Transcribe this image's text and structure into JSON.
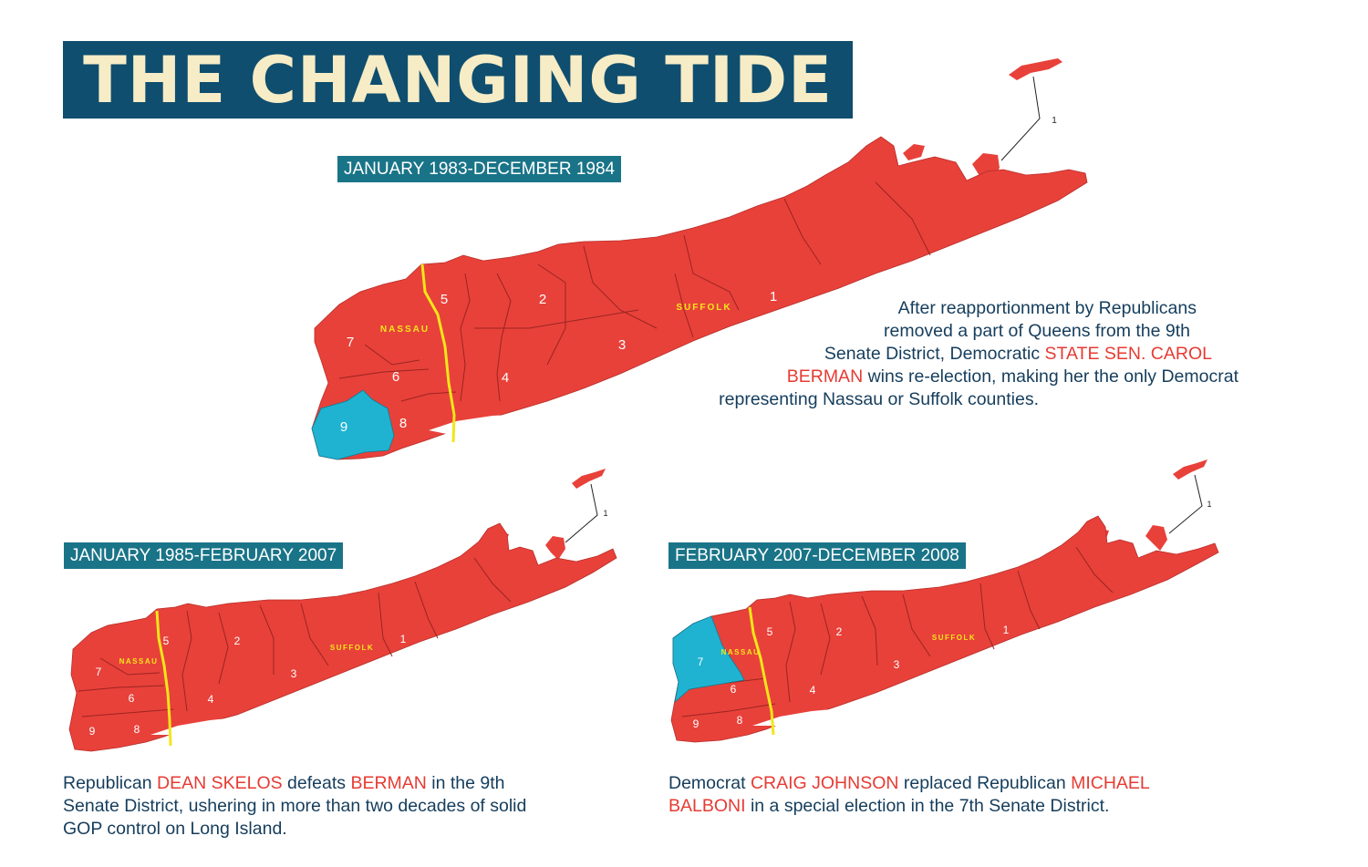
{
  "title": "THE CHANGING TIDE",
  "colors": {
    "title_bg": "#0f4e6e",
    "title_text": "#f6ecc6",
    "period_bg": "#1a7488",
    "republican": "#e8413a",
    "democrat": "#1fb3d1",
    "county_line": "#f2e61a",
    "caption_text": "#153d5c",
    "name_highlight": "#e63b33"
  },
  "maps": [
    {
      "period": "JANUARY 1983-DECEMBER 1984",
      "county_labels": [
        "NASSAU",
        "SUFFOLK"
      ],
      "districts": [
        {
          "id": "1",
          "party": "Republican"
        },
        {
          "id": "2",
          "party": "Republican"
        },
        {
          "id": "3",
          "party": "Republican"
        },
        {
          "id": "4",
          "party": "Republican"
        },
        {
          "id": "5",
          "party": "Republican"
        },
        {
          "id": "6",
          "party": "Republican"
        },
        {
          "id": "7",
          "party": "Republican"
        },
        {
          "id": "8",
          "party": "Republican"
        },
        {
          "id": "9",
          "party": "Democrat"
        }
      ],
      "caption": [
        [
          {
            "t": "After reapportionment by Republicans"
          }
        ],
        [
          {
            "t": "removed a part of Queens from the 9th"
          }
        ],
        [
          {
            "t": "Senate District, Democratic "
          },
          {
            "t": "STATE SEN. CAROL",
            "h": true
          }
        ],
        [
          {
            "t": "BERMAN",
            "h": true
          },
          {
            "t": " wins re-election, making her the only Democrat"
          }
        ],
        [
          {
            "t": "representing Nassau or Suffolk counties."
          }
        ]
      ]
    },
    {
      "period": "JANUARY 1985-FEBRUARY 2007",
      "county_labels": [
        "NASSAU",
        "SUFFOLK"
      ],
      "districts": [
        {
          "id": "1",
          "party": "Republican"
        },
        {
          "id": "2",
          "party": "Republican"
        },
        {
          "id": "3",
          "party": "Republican"
        },
        {
          "id": "4",
          "party": "Republican"
        },
        {
          "id": "5",
          "party": "Republican"
        },
        {
          "id": "6",
          "party": "Republican"
        },
        {
          "id": "7",
          "party": "Republican"
        },
        {
          "id": "8",
          "party": "Republican"
        },
        {
          "id": "9",
          "party": "Republican"
        }
      ],
      "caption": [
        [
          {
            "t": "Republican "
          },
          {
            "t": "DEAN SKELOS",
            "h": true
          },
          {
            "t": " defeats "
          },
          {
            "t": "BERMAN",
            "h": true
          },
          {
            "t": " in the 9th"
          }
        ],
        [
          {
            "t": "Senate District, ushering in more than two decades of solid"
          }
        ],
        [
          {
            "t": "GOP control on Long Island."
          }
        ]
      ]
    },
    {
      "period": "FEBRUARY 2007-DECEMBER 2008",
      "county_labels": [
        "NASSAU",
        "SUFFOLK"
      ],
      "districts": [
        {
          "id": "1",
          "party": "Republican"
        },
        {
          "id": "2",
          "party": "Republican"
        },
        {
          "id": "3",
          "party": "Republican"
        },
        {
          "id": "4",
          "party": "Republican"
        },
        {
          "id": "5",
          "party": "Republican"
        },
        {
          "id": "6",
          "party": "Republican"
        },
        {
          "id": "7",
          "party": "Democrat"
        },
        {
          "id": "8",
          "party": "Republican"
        },
        {
          "id": "9",
          "party": "Republican"
        }
      ],
      "caption": [
        [
          {
            "t": "Democrat "
          },
          {
            "t": "CRAIG JOHNSON",
            "h": true
          },
          {
            "t": " replaced Republican "
          },
          {
            "t": "MICHAEL",
            "h": true
          }
        ],
        [
          {
            "t": "BALBONI",
            "h": true
          },
          {
            "t": " in a special election in the 7th Senate District."
          }
        ]
      ]
    }
  ]
}
